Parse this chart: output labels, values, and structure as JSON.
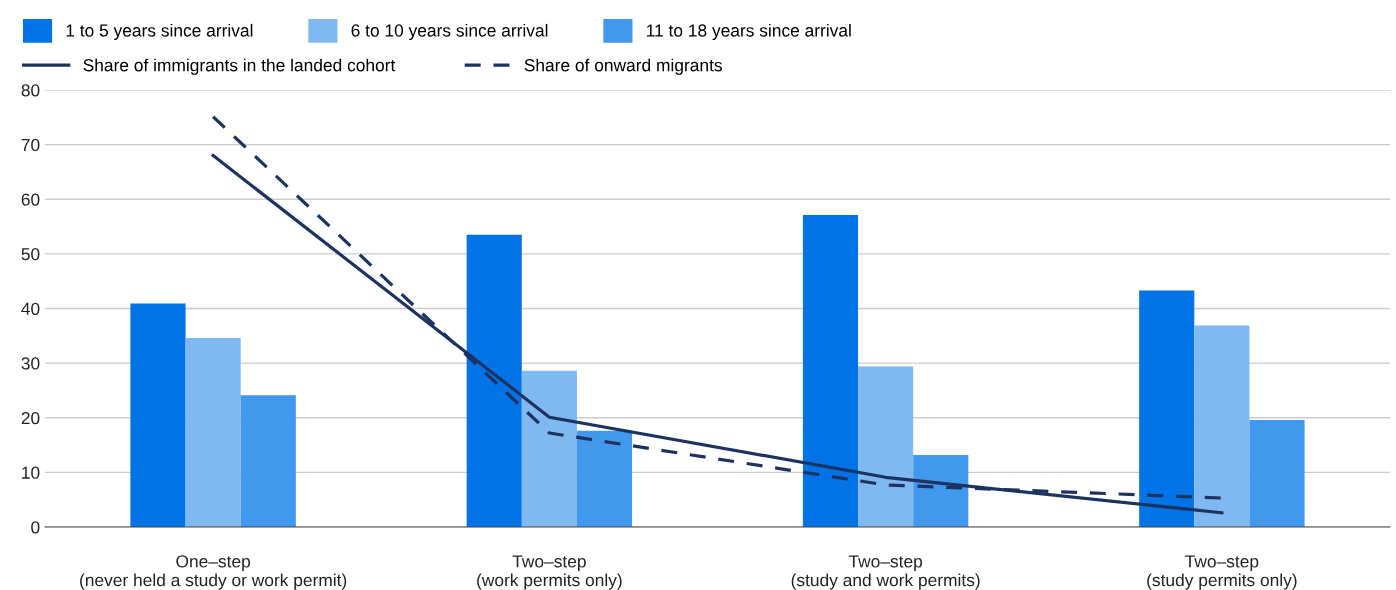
{
  "chart_data": {
    "type": "bar",
    "categories": [
      "One–step\n(never held a study or work permit)",
      "Two–step\n(work permits only)",
      "Two–step\n(study and work permits)",
      "Two–step\n(study permits only)"
    ],
    "series": [
      {
        "name": "1 to 5 years since arrival",
        "color": "#0073e6",
        "values": [
          40.9,
          53.5,
          57.1,
          43.3
        ]
      },
      {
        "name": "6 to 10 years since arrival",
        "color": "#80b8f2",
        "values": [
          34.6,
          28.6,
          29.4,
          36.9
        ]
      },
      {
        "name": "11 to 18 years since arrival",
        "color": "#4199ed",
        "values": [
          24.1,
          17.6,
          13.2,
          19.6
        ]
      },
      {
        "name": "Share of immigrants in the landed cohort",
        "type": "line",
        "line_style": "solid",
        "color": "#1c3361",
        "values": [
          68.0,
          20.1,
          9.1,
          2.6
        ]
      },
      {
        "name": "Share of onward migrants",
        "type": "line",
        "line_style": "dashed",
        "color": "#1c3361",
        "values": [
          75.1,
          17.2,
          7.7,
          5.3
        ]
      }
    ],
    "ylim": [
      0,
      80
    ],
    "yticks": [
      0,
      10,
      20,
      30,
      40,
      50,
      60,
      70,
      80
    ],
    "grid": "y",
    "legend": "top left"
  }
}
